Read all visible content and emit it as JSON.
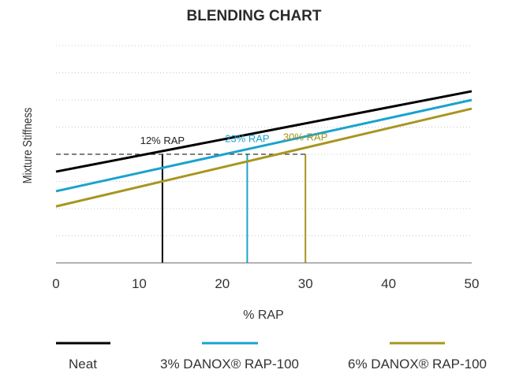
{
  "chart_data": {
    "type": "line",
    "title": "BLENDING CHART",
    "xlabel": "% RAP",
    "ylabel": "Mixture Stiffness",
    "xlim": [
      0,
      50
    ],
    "ylim": [
      0,
      10
    ],
    "x_ticks": [
      "0",
      "10",
      "20",
      "30",
      "40",
      "50"
    ],
    "y_ticks_shown": false,
    "grid": "horizontal dotted",
    "legend_placement": "bottom",
    "series": [
      {
        "name": "Neat",
        "color": "#000000",
        "x": [
          0,
          50
        ],
        "y": [
          4.2,
          7.9
        ]
      },
      {
        "name": "3% DANOX® RAP-100",
        "color": "#1aa3cc",
        "x": [
          0,
          50
        ],
        "y": [
          3.3,
          7.5
        ]
      },
      {
        "name": "6% DANOX® RAP-100",
        "color": "#a8951f",
        "x": [
          0,
          50
        ],
        "y": [
          2.6,
          7.1
        ]
      }
    ],
    "reference": {
      "stiffness": 5.0,
      "style": "dashed",
      "color": "#333333"
    },
    "annotations": [
      {
        "text": "12% RAP",
        "x": 12.8,
        "series": 0,
        "color": "#222222"
      },
      {
        "text": "23% RAP",
        "x": 23.0,
        "series": 1,
        "color": "#1aa3cc"
      },
      {
        "text": "30% RAP",
        "x": 30.0,
        "series": 2,
        "color": "#a8951f"
      }
    ]
  }
}
